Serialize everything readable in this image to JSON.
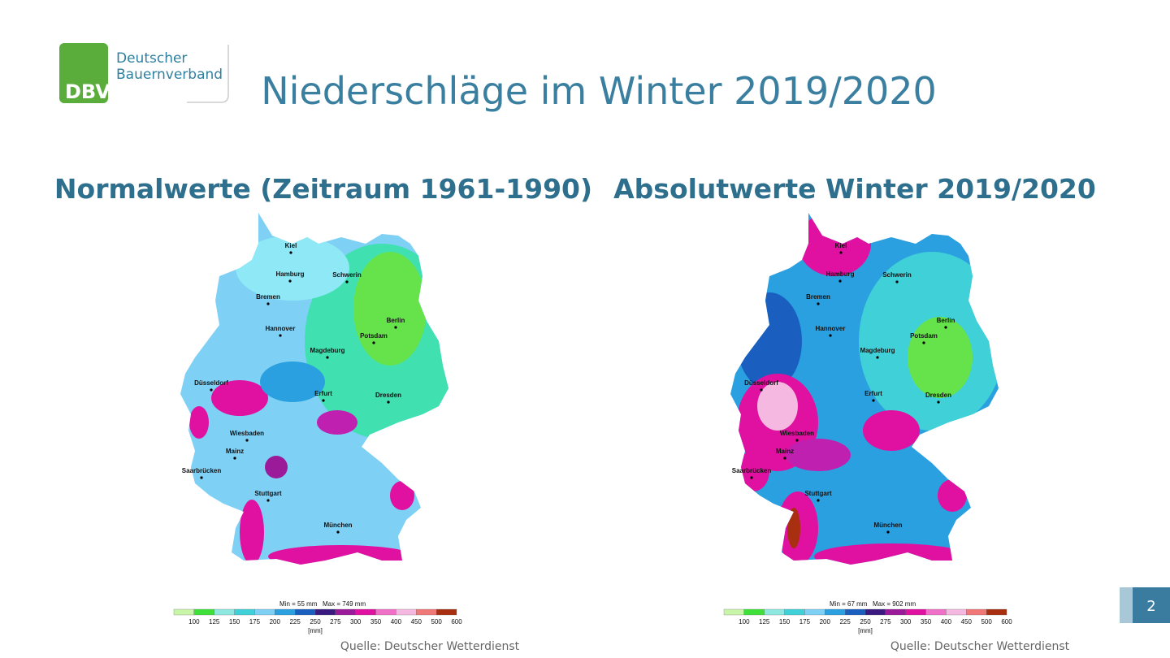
{
  "logo": {
    "line1": "Deutscher",
    "line2": "Bauernverband",
    "mark": "DBV"
  },
  "title": "Niederschläge im Winter 2019/2020",
  "panels": [
    {
      "heading": "Normalwerte (Zeitraum 1961-1990)",
      "min": "Min = 55 mm",
      "max": "Max = 749 mm",
      "source": "Quelle: Deutscher Wetterdienst"
    },
    {
      "heading": "Absolutwerte Winter 2019/2020",
      "min": "Min = 67 mm",
      "max": "Max = 902 mm",
      "source": "Quelle: Deutscher Wetterdienst"
    }
  ],
  "cities": [
    "Kiel",
    "Hamburg",
    "Schwerin",
    "Bremen",
    "Berlin",
    "Potsdam",
    "Hannover",
    "Magdeburg",
    "Düsseldorf",
    "Erfurt",
    "Dresden",
    "Wiesbaden",
    "Mainz",
    "Saarbrücken",
    "Stuttgart",
    "München"
  ],
  "legend": {
    "ticks": [
      100,
      125,
      150,
      175,
      200,
      225,
      250,
      275,
      300,
      350,
      400,
      450,
      500,
      600
    ],
    "unit": "[mm]",
    "colors": [
      "#c8f5a8",
      "#3fe03a",
      "#8fe8e0",
      "#40d0d8",
      "#7fd0f5",
      "#2aa0e0",
      "#1a5fc0",
      "#3a1a80",
      "#9a1a9a",
      "#e010a0",
      "#f070c8",
      "#f5b8e0",
      "#f07878",
      "#a83010"
    ]
  },
  "page": "2"
}
